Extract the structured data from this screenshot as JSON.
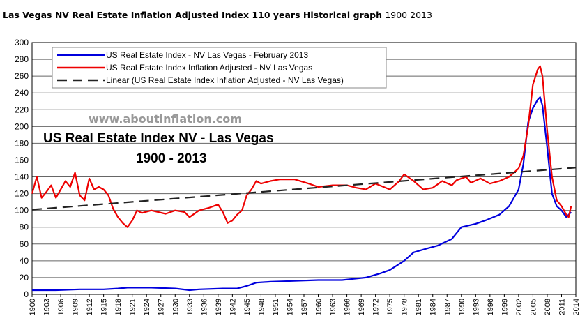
{
  "page": {
    "title": "Las Vegas NV Real Estate Inflation Adjusted Index 110 years Historical graph",
    "title_years": "1900   2013"
  },
  "chart_data": {
    "type": "line",
    "watermark": "www.aboutinflation.com",
    "overlay_title": "US Real Estate Index  NV - Las Vegas",
    "overlay_subtitle": "1900 - 2013",
    "xlim": [
      1900,
      2014
    ],
    "ylim": [
      0,
      300
    ],
    "y_ticks": [
      0,
      20,
      40,
      60,
      80,
      100,
      120,
      140,
      160,
      180,
      200,
      220,
      240,
      260,
      280,
      300
    ],
    "x_ticks": [
      "1900",
      "1903",
      "1906",
      "1909",
      "1912",
      "1915",
      "1918",
      "1921",
      "1924",
      "1927",
      "1930",
      "1933",
      "1936",
      "1939",
      "1942",
      "1945",
      "1948",
      "1951",
      "1954",
      "1957",
      "1960",
      "1963",
      "1966",
      "1969",
      "1972",
      "1975",
      "1978",
      "1981",
      "1984",
      "1987",
      "1990",
      "1993",
      "1996",
      "1999",
      "2002",
      "2005",
      "2008",
      "2011",
      "2014"
    ],
    "grid": true,
    "legend_position": "top-left",
    "series": [
      {
        "name": "US Real Estate Index - NV Las Vegas - February 2013",
        "color": "#0000dd",
        "style": "solid",
        "x": [
          1900,
          1905,
          1910,
          1915,
          1918,
          1920,
          1925,
          1930,
          1933,
          1935,
          1940,
          1943,
          1945,
          1947,
          1950,
          1955,
          1960,
          1965,
          1970,
          1973,
          1975,
          1978,
          1980,
          1983,
          1985,
          1988,
          1990,
          1993,
          1995,
          1998,
          2000,
          2001,
          2002,
          2003,
          2004,
          2005,
          2006,
          2006.5,
          2007,
          2008,
          2009,
          2010,
          2011,
          2012,
          2013
        ],
        "y": [
          5,
          5,
          6,
          6,
          7,
          8,
          8,
          7,
          5,
          6,
          7,
          7,
          10,
          14,
          15,
          16,
          17,
          17,
          20,
          25,
          29,
          40,
          50,
          55,
          58,
          66,
          80,
          84,
          88,
          95,
          105,
          115,
          125,
          155,
          205,
          222,
          232,
          235,
          225,
          175,
          120,
          105,
          100,
          92,
          98
        ]
      },
      {
        "name": "US Real Estate Index Inflation Adjusted - NV Las Vegas",
        "color": "#ee0000",
        "style": "solid",
        "x": [
          1900,
          1901,
          1902,
          1903,
          1904,
          1905,
          1906,
          1907,
          1908,
          1909,
          1910,
          1911,
          1912,
          1913,
          1914,
          1915,
          1916,
          1917,
          1918,
          1919,
          1920,
          1921,
          1922,
          1923,
          1925,
          1928,
          1930,
          1932,
          1933,
          1935,
          1937,
          1939,
          1940,
          1941,
          1942,
          1943,
          1944,
          1945,
          1946,
          1947,
          1948,
          1950,
          1952,
          1955,
          1958,
          1960,
          1963,
          1966,
          1968,
          1970,
          1972,
          1975,
          1977,
          1978,
          1980,
          1982,
          1984,
          1986,
          1988,
          1989,
          1991,
          1992,
          1994,
          1996,
          1998,
          2000,
          2001,
          2002,
          2003,
          2004,
          2005,
          2006,
          2006.5,
          2007,
          2008,
          2009,
          2010,
          2011,
          2012,
          2012.5,
          2013
        ],
        "y": [
          120,
          140,
          115,
          122,
          130,
          115,
          125,
          135,
          128,
          145,
          118,
          112,
          138,
          125,
          128,
          125,
          118,
          102,
          92,
          85,
          80,
          88,
          100,
          97,
          100,
          96,
          100,
          98,
          92,
          100,
          103,
          107,
          98,
          85,
          88,
          95,
          100,
          118,
          125,
          135,
          132,
          135,
          137,
          137,
          132,
          128,
          130,
          130,
          127,
          125,
          132,
          125,
          135,
          143,
          135,
          125,
          127,
          135,
          130,
          136,
          140,
          133,
          138,
          132,
          135,
          140,
          145,
          150,
          165,
          200,
          250,
          268,
          272,
          260,
          195,
          140,
          112,
          105,
          95,
          92,
          105
        ]
      },
      {
        "name": "Linear (US Real Estate Index Inflation Adjusted - NV Las Vegas)",
        "color": "#222222",
        "style": "dashed",
        "x": [
          1900,
          2014
        ],
        "y": [
          101,
          151
        ]
      }
    ]
  }
}
